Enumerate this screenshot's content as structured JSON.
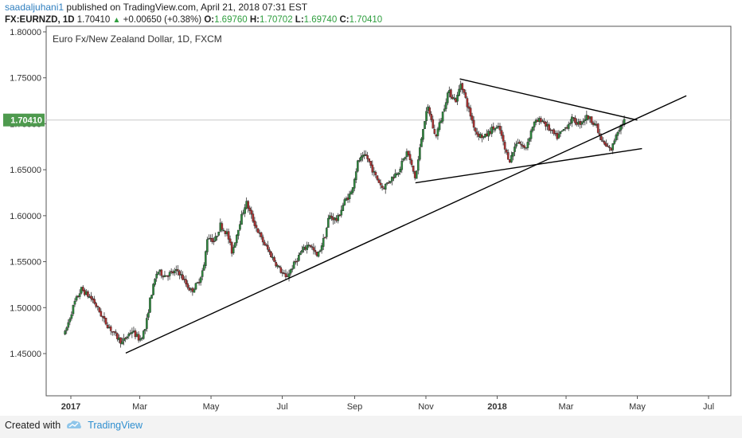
{
  "header": {
    "user": "saadaljuhani1",
    "published_text": "published on TradingView.com, April 21, 2018 07:31 EST",
    "symbol": "FX:EURNZD,",
    "interval": "1D",
    "last": "1.70410",
    "change": "+0.00650 (+0.38%)",
    "open_label": "O:",
    "open": "1.69760",
    "high_label": "H:",
    "high": "1.70702",
    "low_label": "L:",
    "low": "1.69740",
    "close_label": "C:",
    "close": "1.70410"
  },
  "chart_data": {
    "type": "candlestick",
    "title": "Euro Fx/New Zealand Dollar, 1D, FXCM",
    "y_ticks": [
      "1.80000",
      "1.75000",
      "1.70000",
      "1.65000",
      "1.60000",
      "1.55000",
      "1.50000",
      "1.45000"
    ],
    "x_ticks": [
      "2017",
      "Mar",
      "May",
      "Jul",
      "Sep",
      "Nov",
      "2018",
      "Mar",
      "May",
      "Jul"
    ],
    "ylim": [
      1.4,
      1.8
    ],
    "last_price_label": "1.70410",
    "colors": {
      "up": "#2e8b3e",
      "down": "#b03030",
      "trendline": "#000000",
      "price_line": "#c8c8c8"
    },
    "price_path": [
      [
        "2016-12-27",
        1.472
      ],
      [
        "2017-01-04",
        1.505
      ],
      [
        "2017-01-10",
        1.52
      ],
      [
        "2017-01-20",
        1.508
      ],
      [
        "2017-01-30",
        1.485
      ],
      [
        "2017-02-08",
        1.47
      ],
      [
        "2017-02-14",
        1.462
      ],
      [
        "2017-02-22",
        1.475
      ],
      [
        "2017-03-01",
        1.465
      ],
      [
        "2017-03-06",
        1.478
      ],
      [
        "2017-03-10",
        1.51
      ],
      [
        "2017-03-16",
        1.54
      ],
      [
        "2017-03-22",
        1.535
      ],
      [
        "2017-04-03",
        1.54
      ],
      [
        "2017-04-10",
        1.525
      ],
      [
        "2017-04-14",
        1.518
      ],
      [
        "2017-04-20",
        1.527
      ],
      [
        "2017-04-25",
        1.545
      ],
      [
        "2017-04-28",
        1.578
      ],
      [
        "2017-05-04",
        1.572
      ],
      [
        "2017-05-09",
        1.59
      ],
      [
        "2017-05-15",
        1.58
      ],
      [
        "2017-05-19",
        1.56
      ],
      [
        "2017-05-25",
        1.59
      ],
      [
        "2017-05-31",
        1.615
      ],
      [
        "2017-06-06",
        1.595
      ],
      [
        "2017-06-13",
        1.575
      ],
      [
        "2017-06-20",
        1.56
      ],
      [
        "2017-06-27",
        1.545
      ],
      [
        "2017-07-04",
        1.532
      ],
      [
        "2017-07-10",
        1.545
      ],
      [
        "2017-07-17",
        1.56
      ],
      [
        "2017-07-24",
        1.57
      ],
      [
        "2017-07-31",
        1.555
      ],
      [
        "2017-08-07",
        1.58
      ],
      [
        "2017-08-10",
        1.6
      ],
      [
        "2017-08-17",
        1.595
      ],
      [
        "2017-08-23",
        1.615
      ],
      [
        "2017-08-29",
        1.625
      ],
      [
        "2017-09-04",
        1.66
      ],
      [
        "2017-09-11",
        1.665
      ],
      [
        "2017-09-18",
        1.645
      ],
      [
        "2017-09-25",
        1.63
      ],
      [
        "2017-10-02",
        1.64
      ],
      [
        "2017-10-09",
        1.65
      ],
      [
        "2017-10-16",
        1.67
      ],
      [
        "2017-10-23",
        1.64
      ],
      [
        "2017-10-30",
        1.7
      ],
      [
        "2017-11-03",
        1.718
      ],
      [
        "2017-11-09",
        1.685
      ],
      [
        "2017-11-14",
        1.705
      ],
      [
        "2017-11-20",
        1.735
      ],
      [
        "2017-11-27",
        1.725
      ],
      [
        "2017-12-01",
        1.745
      ],
      [
        "2017-12-07",
        1.718
      ],
      [
        "2017-12-14",
        1.69
      ],
      [
        "2017-12-21",
        1.685
      ],
      [
        "2017-12-28",
        1.695
      ],
      [
        "2018-01-03",
        1.695
      ],
      [
        "2018-01-08",
        1.67
      ],
      [
        "2018-01-12",
        1.66
      ],
      [
        "2018-01-18",
        1.682
      ],
      [
        "2018-01-25",
        1.672
      ],
      [
        "2018-02-01",
        1.7
      ],
      [
        "2018-02-08",
        1.705
      ],
      [
        "2018-02-14",
        1.695
      ],
      [
        "2018-02-21",
        1.685
      ],
      [
        "2018-02-28",
        1.695
      ],
      [
        "2018-03-06",
        1.705
      ],
      [
        "2018-03-12",
        1.7
      ],
      [
        "2018-03-19",
        1.708
      ],
      [
        "2018-03-26",
        1.7
      ],
      [
        "2018-03-30",
        1.685
      ],
      [
        "2018-04-04",
        1.675
      ],
      [
        "2018-04-09",
        1.672
      ],
      [
        "2018-04-13",
        1.69
      ],
      [
        "2018-04-20",
        1.7041
      ]
    ],
    "trendlines": [
      {
        "from": [
          "2017-02-17",
          1.4505
        ],
        "to": [
          "2018-06-12",
          1.7305
        ]
      },
      {
        "from": [
          "2017-10-23",
          1.6358
        ],
        "to": [
          "2018-05-05",
          1.673
        ]
      },
      {
        "from": [
          "2017-11-30",
          1.7488
        ],
        "to": [
          "2018-05-01",
          1.704
        ]
      }
    ]
  },
  "footer": {
    "created_with": "Created with",
    "brand": "TradingView"
  }
}
